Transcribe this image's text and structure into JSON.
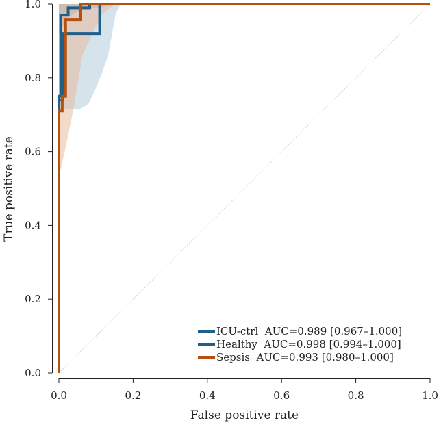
{
  "chart_data": {
    "type": "line",
    "title": "",
    "xlabel": "False positive rate",
    "ylabel": "True positive rate",
    "xlim": [
      0,
      1
    ],
    "ylim": [
      0,
      1
    ],
    "xticks": [
      "0.0",
      "0.2",
      "0.4",
      "0.6",
      "0.8",
      "1.0"
    ],
    "yticks": [
      "0.0",
      "0.2",
      "0.4",
      "0.6",
      "0.8",
      "1.0"
    ],
    "grid": false,
    "legend_position": "bottom-right",
    "diagonal_reference": true,
    "series": [
      {
        "name": "ICU-ctrl  AUC=0.989 [0.967–1.000]",
        "color": "#1f5f8b",
        "x": [
          0,
          0,
          0.01,
          0.01,
          0.012,
          0.012,
          0.11,
          0.11,
          1
        ],
        "y": [
          0,
          0.74,
          0.74,
          0.83,
          0.83,
          0.92,
          0.92,
          1,
          1
        ],
        "ci_lower": {
          "x": [
            0.055,
            0.08,
            0.096,
            0.114,
            0.133,
            0.153,
            0.166
          ],
          "y": [
            0.714,
            0.73,
            0.764,
            0.807,
            0.862,
            0.974,
            1
          ]
        }
      },
      {
        "name": "Healthy  AUC=0.998 [0.994–1.000]",
        "color": "#1f5f8b",
        "x": [
          0,
          0,
          0.005,
          0.005,
          0.025,
          0.025,
          0.083,
          0.083,
          1
        ],
        "y": [
          0,
          0.75,
          0.75,
          0.97,
          0.97,
          0.99,
          0.99,
          1,
          1
        ],
        "ci_lower": {
          "x": [
            0,
            0.02,
            0.05,
            0.1,
            0.17
          ],
          "y": [
            0.92,
            0.96,
            0.98,
            0.99,
            1
          ]
        }
      },
      {
        "name": "Sepsis  AUC=0.993 [0.980–1.000]",
        "color": "#b5500f",
        "x": [
          0,
          0,
          0.009,
          0.009,
          0.018,
          0.018,
          0.059,
          0.059,
          1
        ],
        "y": [
          0,
          0.71,
          0.71,
          0.75,
          0.75,
          0.957,
          0.957,
          1,
          1
        ],
        "ci_lower": {
          "x": [
            0,
            0.02,
            0.04,
            0.063,
            0.09,
            0.118,
            0.15
          ],
          "y": [
            0.53,
            0.62,
            0.72,
            0.86,
            0.92,
            0.974,
            1
          ]
        }
      }
    ]
  }
}
